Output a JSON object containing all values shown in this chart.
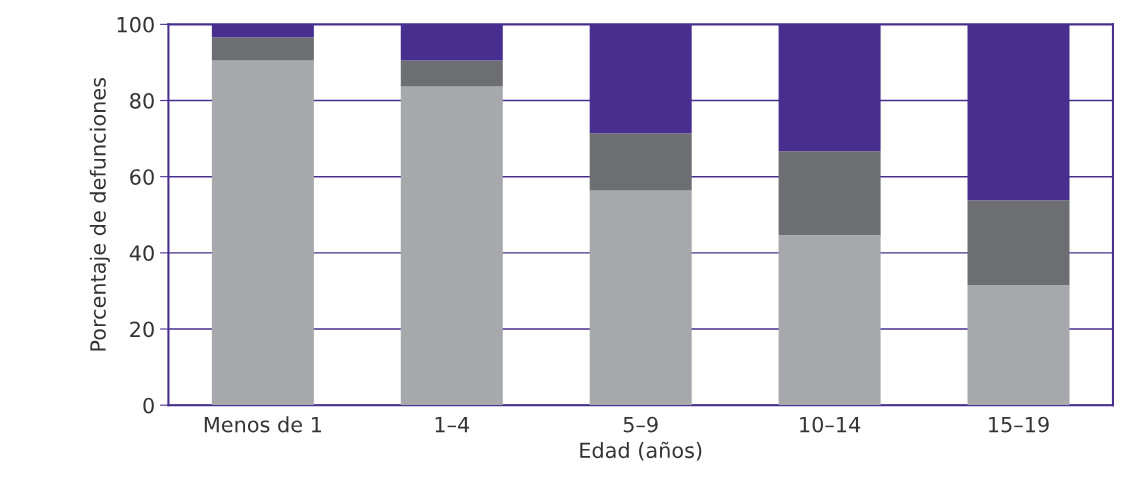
{
  "chart_data": {
    "type": "bar",
    "stacked": true,
    "xlabel": "Edad (años)",
    "ylabel": "Porcentaje de defunciones",
    "categories": [
      "Menos de 1",
      "1–4",
      "5–9",
      "10–14",
      "15–19"
    ],
    "series": [
      {
        "color": "#a7a8ac",
        "values": [
          90.5,
          83.7,
          56.4,
          44.6,
          31.5
        ]
      },
      {
        "color": "#6d6e71",
        "values": [
          6.1,
          6.8,
          15.0,
          22.1,
          22.3
        ]
      },
      {
        "color": "#482f8f",
        "values": [
          3.4,
          9.5,
          28.6,
          33.3,
          46.2
        ]
      }
    ],
    "ylim": [
      0,
      100
    ],
    "yticks": [
      0,
      20,
      40,
      60,
      80,
      100
    ],
    "grid": "y"
  }
}
